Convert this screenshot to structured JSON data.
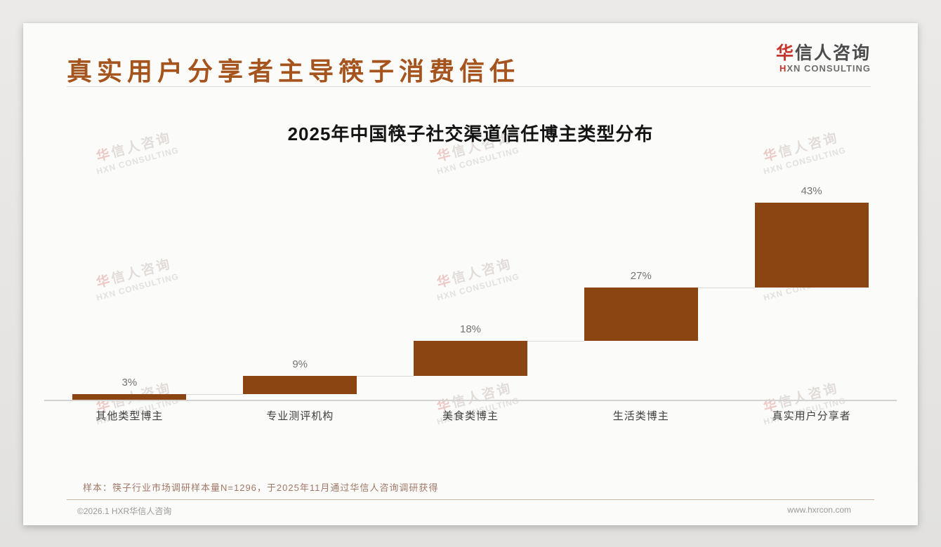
{
  "page": {
    "title": "真实用户分享者主导筷子消费信任",
    "logo": {
      "zh_first": "华",
      "zh_rest": "信人咨询",
      "en_first": "H",
      "en_rest": "XN CONSULTING"
    },
    "watermark": {
      "zh_first": "华",
      "zh_rest": "信人咨询",
      "en": "HXN CONSULTING"
    },
    "note": "样本：筷子行业市场调研样本量N=1296，于2025年11月通过华信人咨询调研获得",
    "footer": {
      "left": "©2026.1 HXR华信人咨询",
      "right": "www.hxrcon.com"
    }
  },
  "chart_data": {
    "type": "bar",
    "subtype": "waterfall-steps",
    "title": "2025年中国筷子社交渠道信任博主类型分布",
    "categories": [
      "其他类型博主",
      "专业测评机构",
      "美食类博主",
      "生活类博主",
      "真实用户分享者"
    ],
    "values": [
      3,
      9,
      18,
      27,
      43
    ],
    "labels": [
      "3%",
      "9%",
      "18%",
      "27%",
      "43%"
    ],
    "cumulative": [
      3,
      12,
      30,
      57,
      100
    ],
    "unit": "%",
    "ylim": [
      0,
      100
    ],
    "grid": false,
    "legend": false,
    "bar_color": "#8B4513",
    "value_label_color": "#737373",
    "category_label_color": "#3F3F3F",
    "axis_line_color": "#D3D2D0",
    "connector_color": "#D9D8D6"
  },
  "colors": {
    "page_title": "#A5541D",
    "logo_red": "#C5352B",
    "logo_gray": "#4C4C4C",
    "note_text": "#A27866",
    "footer_text": "#9A9A9A",
    "slide_bg": "#FBFBF9",
    "canvas_bg": "#E7E6E4"
  }
}
